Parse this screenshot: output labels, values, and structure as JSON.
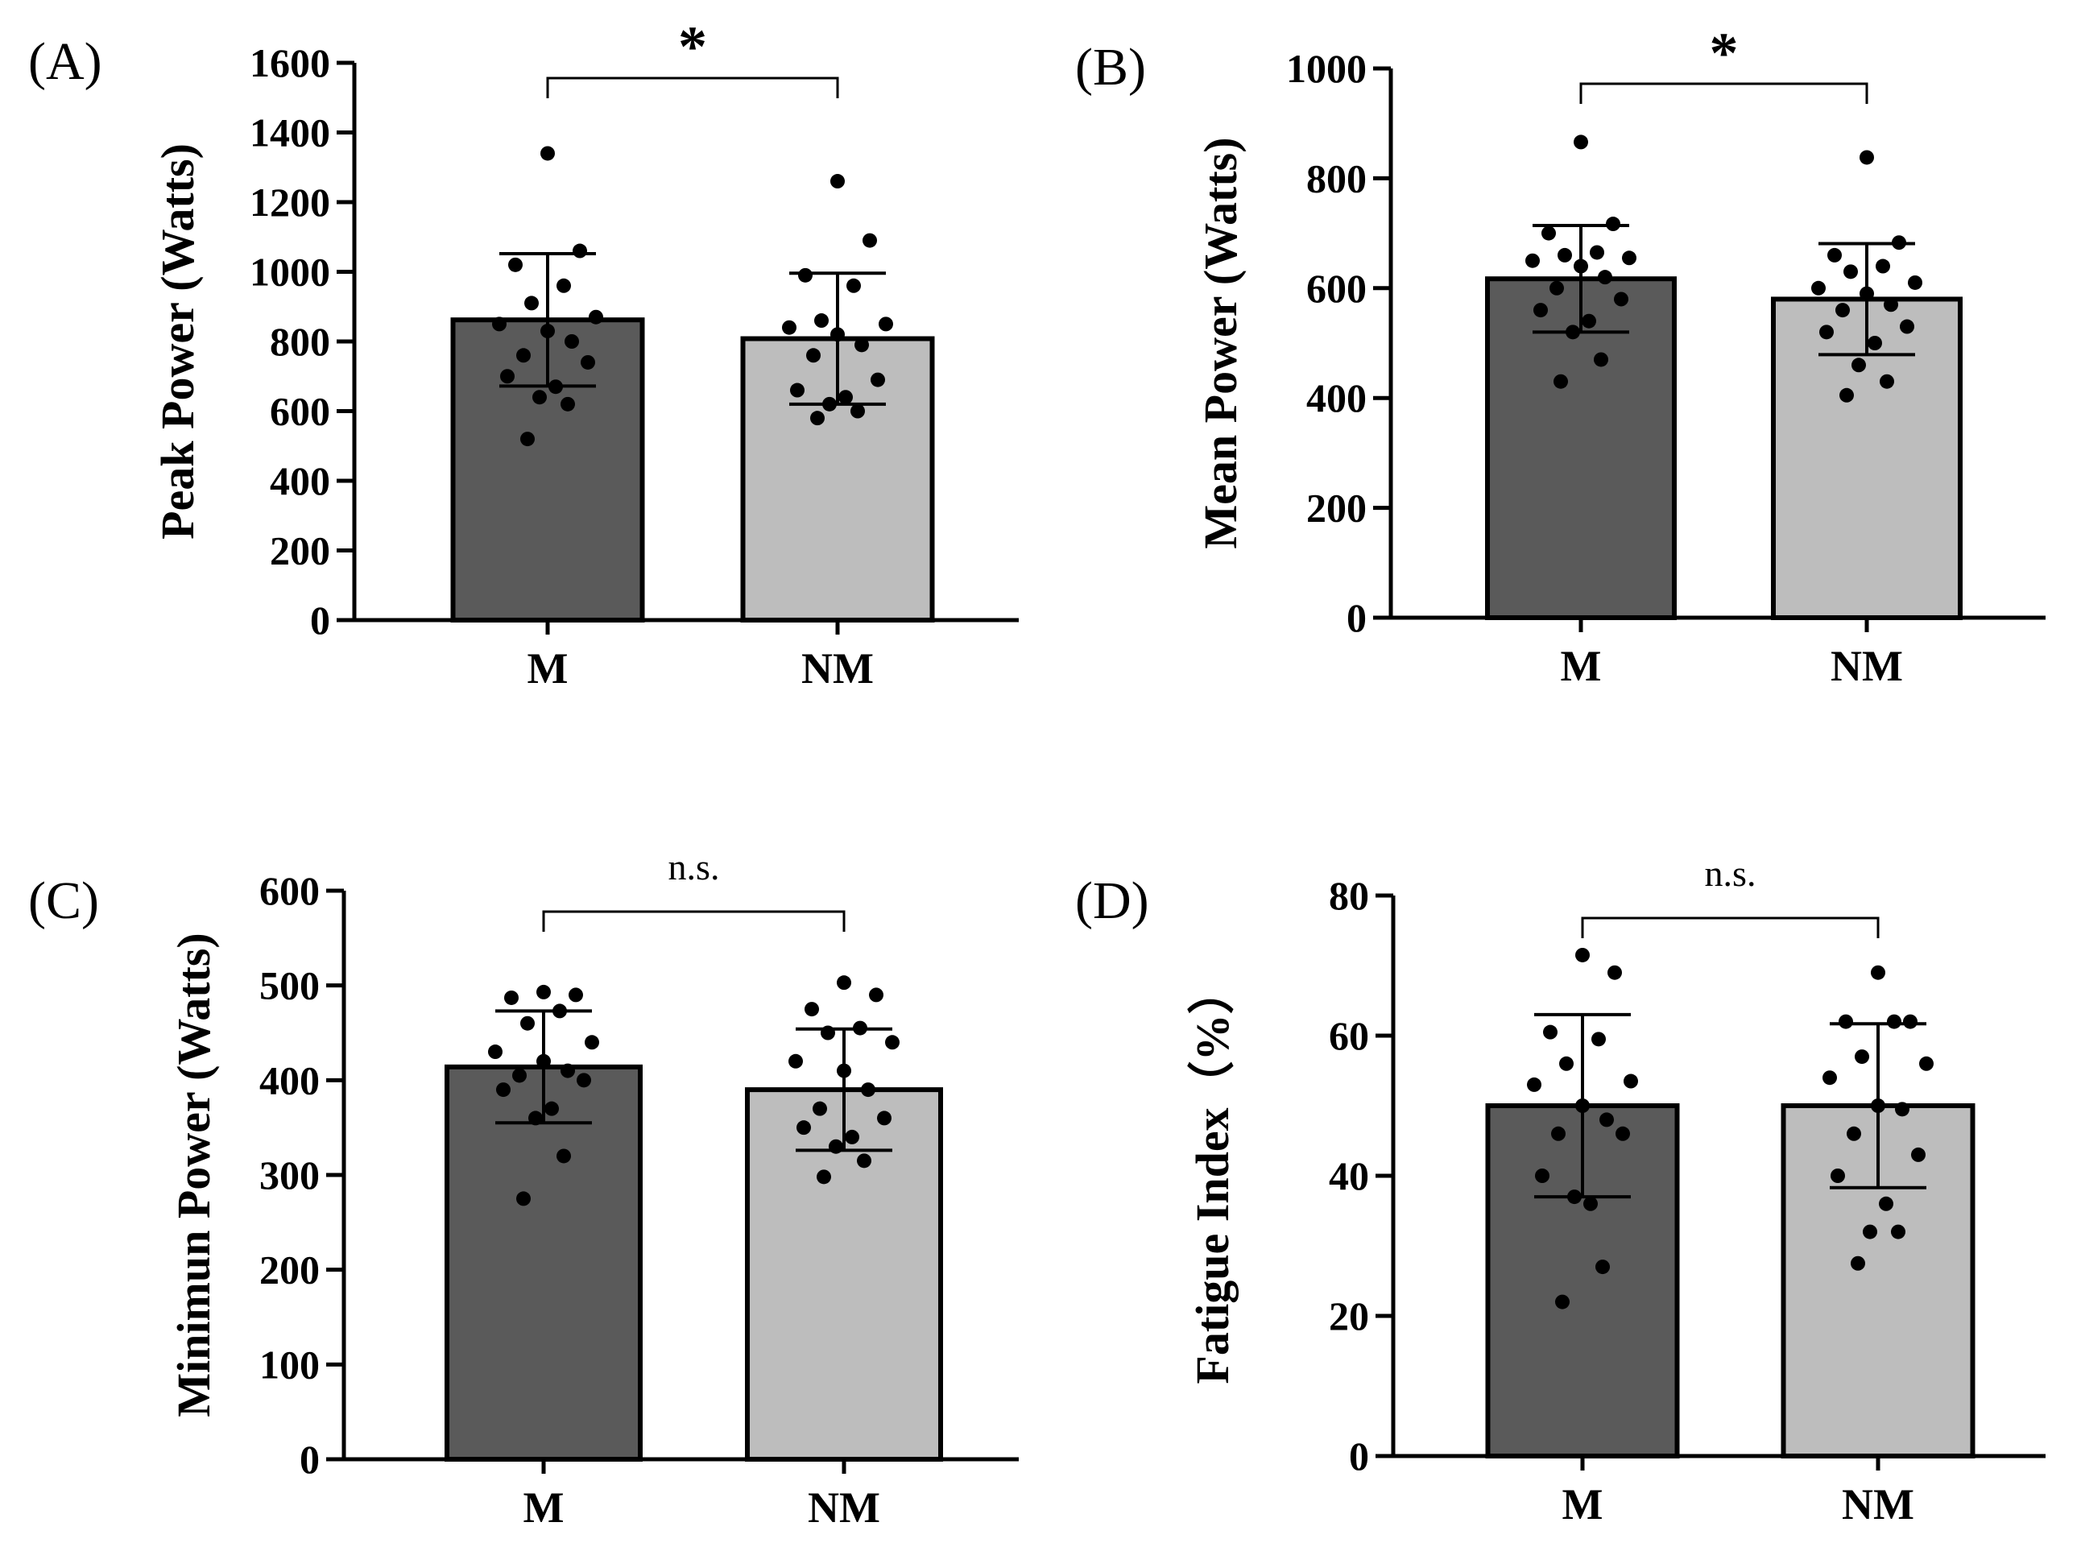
{
  "colors": {
    "bar_m": "#5a5a5a",
    "bar_nm": "#bdbdbd",
    "stroke": "#000000"
  },
  "chart_data": [
    {
      "type": "bar",
      "panel_label": "(A)",
      "ylabel": "Peak Power (Watts)",
      "categories": [
        "M",
        "NM"
      ],
      "values": [
        862,
        808
      ],
      "error": [
        190,
        188
      ],
      "ylim": [
        0,
        1600
      ],
      "yticks": [
        "0",
        "200",
        "400",
        "600",
        "800",
        "1000",
        "1200",
        "1400",
        "1600"
      ],
      "significance": "*",
      "points": [
        [
          1340,
          1060,
          1020,
          960,
          910,
          870,
          850,
          830,
          800,
          760,
          740,
          700,
          670,
          640,
          620,
          520
        ],
        [
          1260,
          1090,
          990,
          960,
          860,
          850,
          840,
          820,
          790,
          760,
          690,
          660,
          640,
          620,
          600,
          580
        ]
      ]
    },
    {
      "type": "bar",
      "panel_label": "(B)",
      "ylabel": "Mean Power (Watts)",
      "categories": [
        "M",
        "NM"
      ],
      "values": [
        617,
        580
      ],
      "error": [
        97,
        101
      ],
      "ylim": [
        0,
        1000
      ],
      "yticks": [
        "0",
        "200",
        "400",
        "600",
        "800",
        "1000"
      ],
      "significance": "*",
      "points": [
        [
          866,
          717,
          700,
          665,
          660,
          655,
          650,
          640,
          620,
          600,
          580,
          560,
          540,
          520,
          470,
          430
        ],
        [
          838,
          683,
          660,
          640,
          630,
          610,
          600,
          590,
          570,
          560,
          530,
          520,
          500,
          460,
          430,
          405
        ]
      ]
    },
    {
      "type": "bar",
      "panel_label": "(C)",
      "ylabel": "Minimun Power (Watts)",
      "categories": [
        "M",
        "NM"
      ],
      "values": [
        414,
        390
      ],
      "error": [
        59,
        64
      ],
      "ylim": [
        0,
        600
      ],
      "yticks": [
        "0",
        "100",
        "200",
        "300",
        "400",
        "500",
        "600"
      ],
      "significance": "n.s.",
      "points": [
        [
          493,
          490,
          487,
          473,
          460,
          440,
          430,
          420,
          410,
          405,
          400,
          390,
          370,
          360,
          320,
          275
        ],
        [
          503,
          490,
          475,
          455,
          450,
          440,
          420,
          410,
          390,
          370,
          360,
          350,
          340,
          330,
          315,
          298
        ]
      ]
    },
    {
      "type": "bar",
      "panel_label": "(D)",
      "ylabel": "Fatigue Index（%）",
      "categories": [
        "M",
        "NM"
      ],
      "values": [
        50,
        50
      ],
      "error": [
        13,
        11.7
      ],
      "ylim": [
        0,
        80
      ],
      "yticks": [
        "0",
        "20",
        "40",
        "60",
        "80"
      ],
      "significance": "n.s.",
      "points": [
        [
          71.5,
          69,
          60.5,
          59.5,
          56,
          53.5,
          53,
          50,
          48,
          46,
          46,
          40,
          36,
          37,
          27,
          22
        ],
        [
          69,
          62,
          62,
          62,
          57,
          56,
          54,
          50,
          49.5,
          46,
          43,
          40,
          36,
          32,
          32,
          27.5
        ]
      ]
    }
  ]
}
